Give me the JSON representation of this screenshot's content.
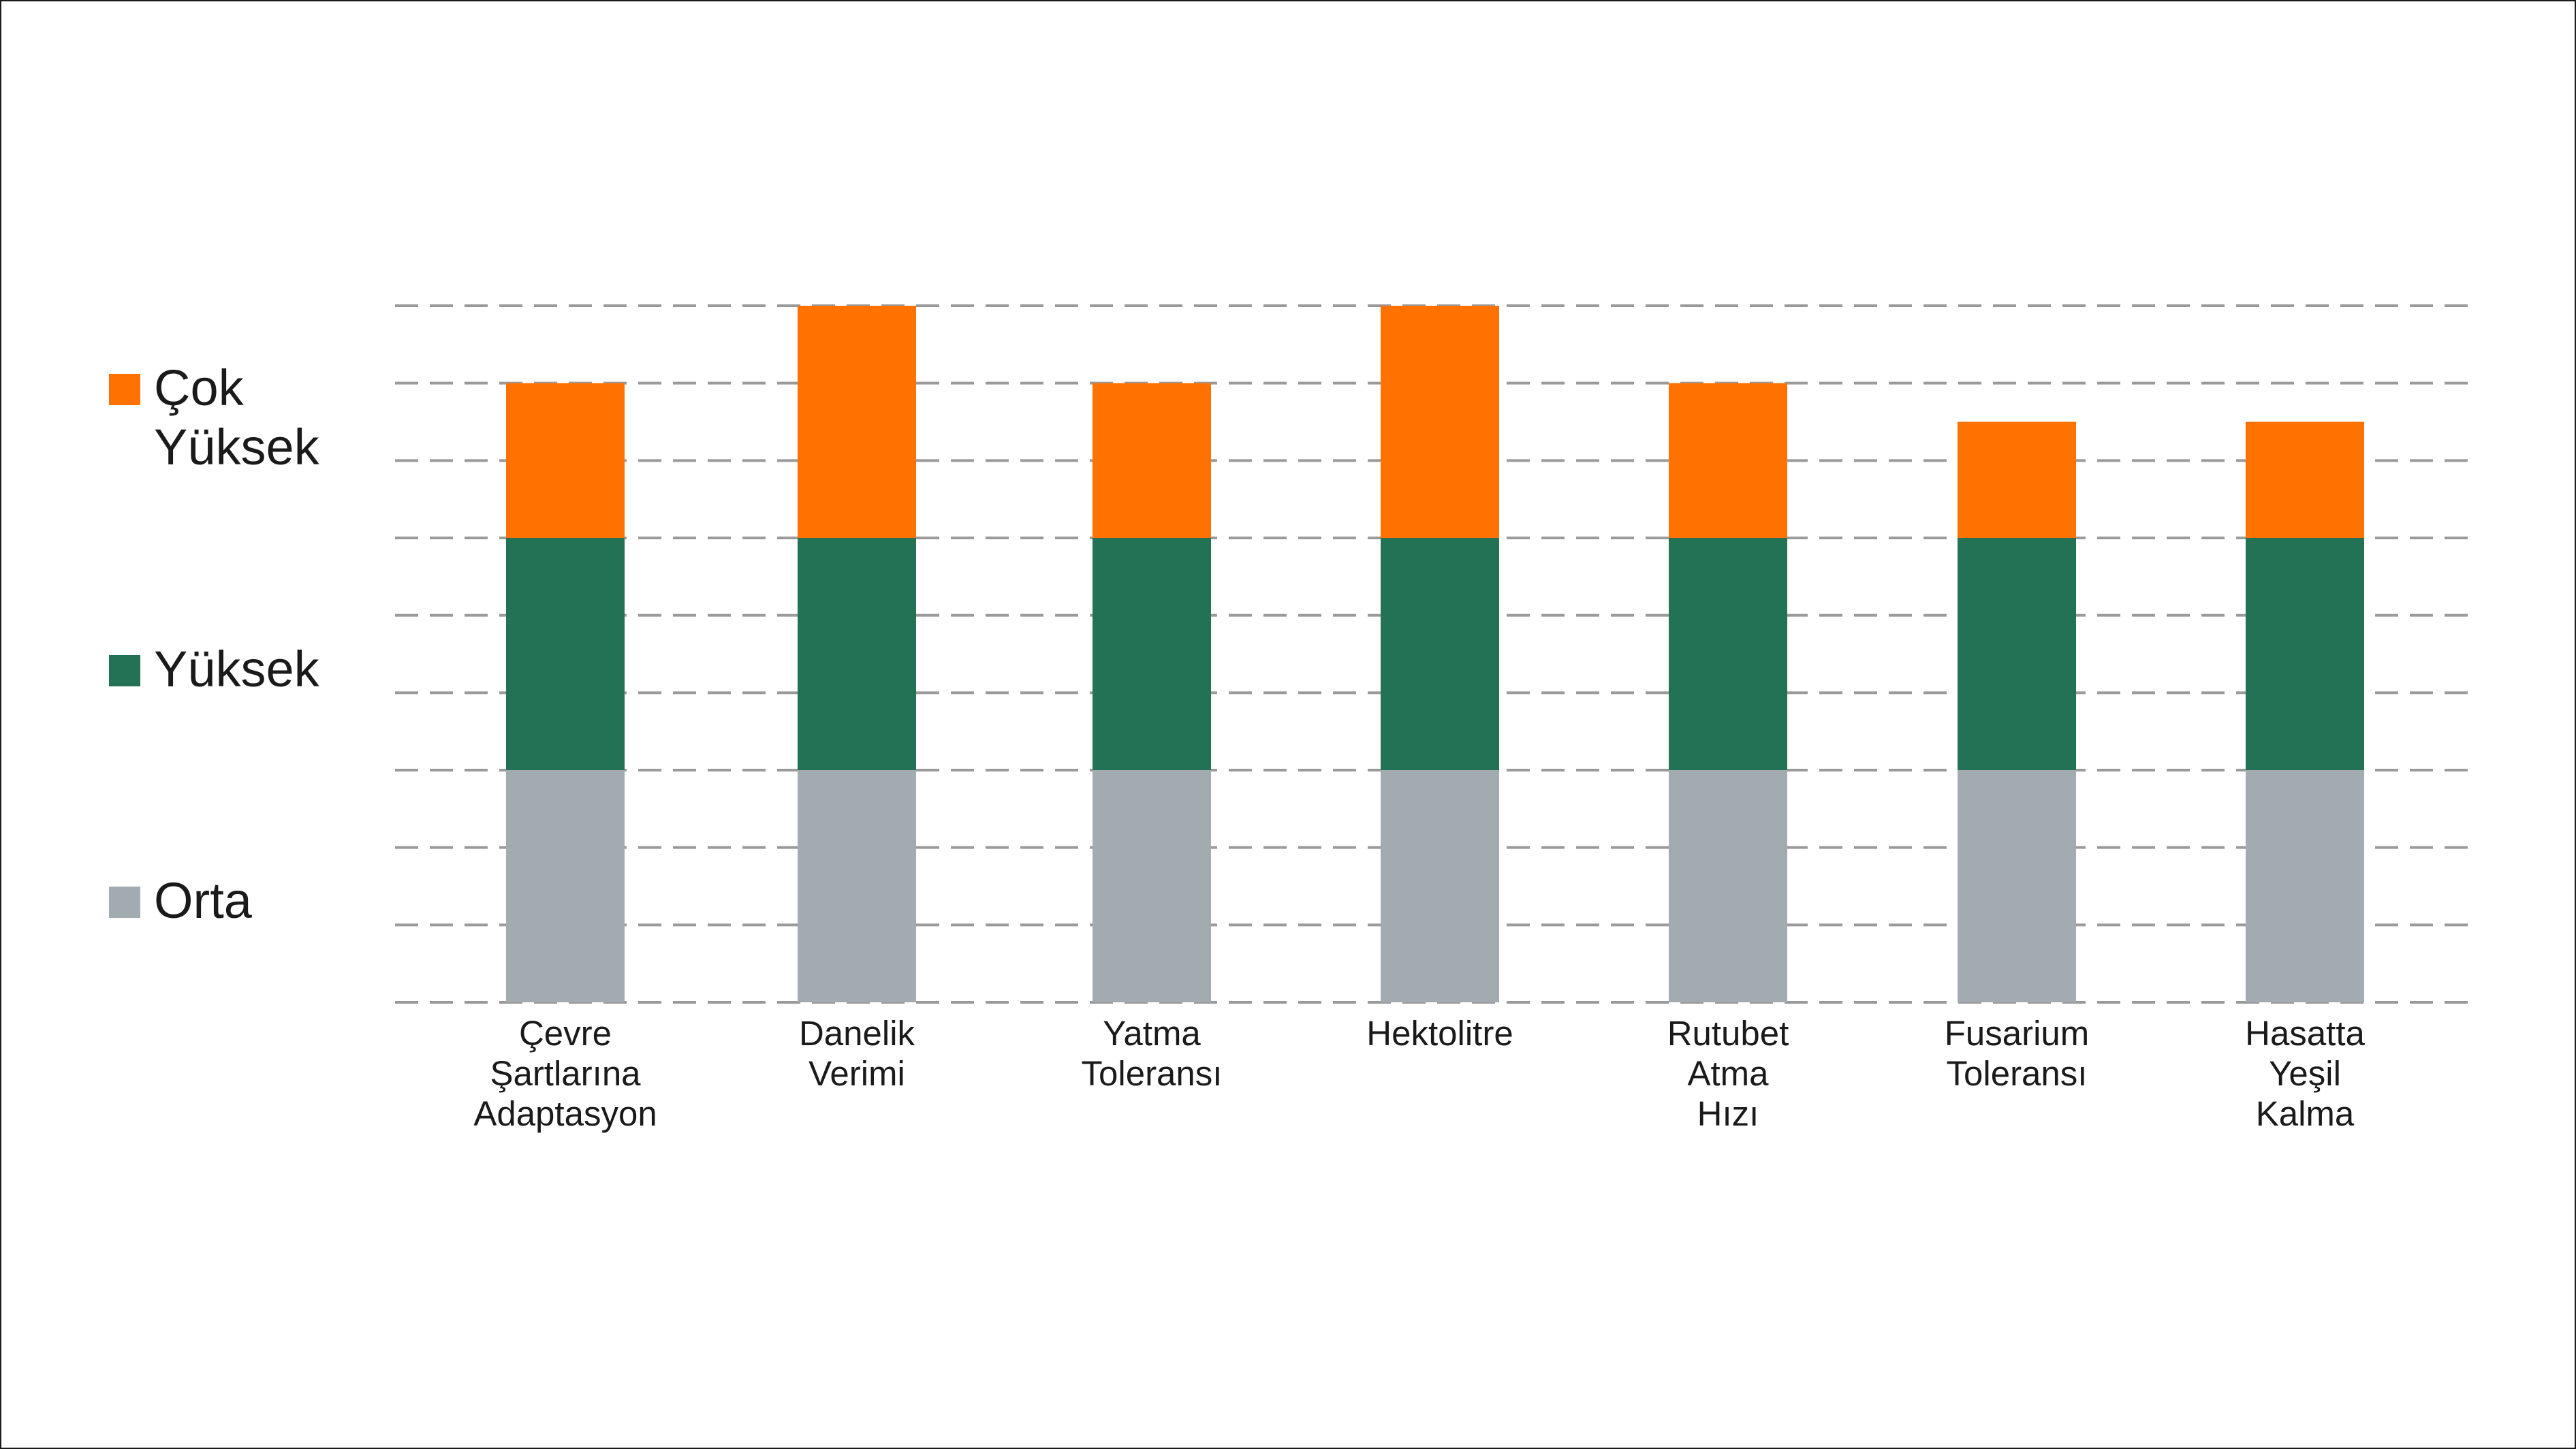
{
  "chart_data": {
    "type": "bar",
    "stacked": true,
    "title": "",
    "xlabel": "",
    "ylabel": "",
    "ylim": [
      0,
      9
    ],
    "grid": true,
    "legend_position": "left",
    "categories": [
      [
        "Çevre",
        "Şartlarına",
        "Adaptasyon"
      ],
      [
        "Danelik",
        "Verimi"
      ],
      [
        "Yatma",
        "Toleransı"
      ],
      [
        "Hektolitre"
      ],
      [
        "Rutubet",
        "Atma",
        "Hızı"
      ],
      [
        "Fusarium",
        "Toleransı"
      ],
      [
        "Hasatta",
        "Yeşil",
        "Kalma"
      ]
    ],
    "series": [
      {
        "name": "Orta",
        "color": "#a2acb0",
        "values": [
          3,
          3,
          3,
          3,
          3,
          3,
          3
        ]
      },
      {
        "name": "Yüksek",
        "color": "#237256",
        "values": [
          3,
          3,
          3,
          3,
          3,
          3,
          3
        ]
      },
      {
        "name": "Çok Yüksek",
        "color": "#ff7100",
        "values": [
          2,
          3,
          2,
          3,
          2,
          1.5,
          1.5
        ]
      }
    ],
    "legend": [
      {
        "lines": [
          "Çok",
          "Yüksek"
        ],
        "color": "#ff7100"
      },
      {
        "lines": [
          "Yüksek"
        ],
        "color": "#237256"
      },
      {
        "lines": [
          "Orta"
        ],
        "color": "#a2acb0"
      }
    ]
  }
}
